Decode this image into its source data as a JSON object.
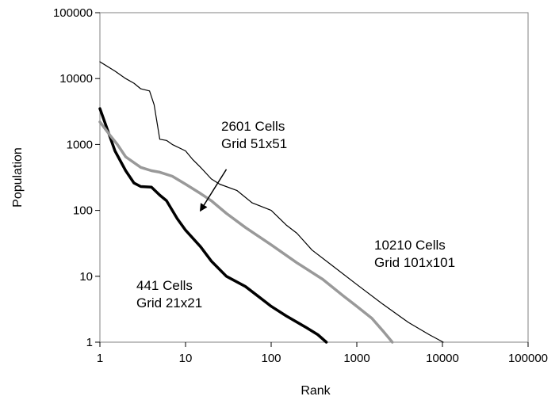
{
  "chart_data": {
    "type": "line",
    "xlabel": "Rank",
    "ylabel": "Population",
    "xscale": "log",
    "yscale": "log",
    "xlim": [
      1,
      100000
    ],
    "ylim": [
      1,
      100000
    ],
    "x_ticks": [
      "1",
      "10",
      "100",
      "1000",
      "10000",
      "100000"
    ],
    "y_ticks": [
      "1",
      "10",
      "100",
      "1000",
      "10000",
      "100000"
    ],
    "grid": false,
    "series": [
      {
        "id": "grid21",
        "color": "#000000",
        "style": "thick",
        "points": [
          [
            1,
            3500
          ],
          [
            1.2,
            1800
          ],
          [
            1.5,
            800
          ],
          [
            2,
            400
          ],
          [
            2.5,
            260
          ],
          [
            3,
            230
          ],
          [
            4,
            225
          ],
          [
            5,
            170
          ],
          [
            6,
            140
          ],
          [
            8,
            75
          ],
          [
            10,
            50
          ],
          [
            15,
            28
          ],
          [
            20,
            17
          ],
          [
            30,
            10
          ],
          [
            50,
            7
          ],
          [
            70,
            5
          ],
          [
            100,
            3.5
          ],
          [
            150,
            2.5
          ],
          [
            250,
            1.7
          ],
          [
            350,
            1.3
          ],
          [
            441,
            1
          ]
        ]
      },
      {
        "id": "grid51",
        "color": "#999999",
        "style": "thick",
        "points": [
          [
            1,
            2200
          ],
          [
            1.3,
            1400
          ],
          [
            1.6,
            1000
          ],
          [
            2,
            650
          ],
          [
            3,
            450
          ],
          [
            4,
            400
          ],
          [
            5,
            380
          ],
          [
            7,
            330
          ],
          [
            10,
            250
          ],
          [
            15,
            180
          ],
          [
            20,
            140
          ],
          [
            30,
            90
          ],
          [
            50,
            55
          ],
          [
            100,
            30
          ],
          [
            200,
            16
          ],
          [
            400,
            9
          ],
          [
            700,
            5
          ],
          [
            1000,
            3.5
          ],
          [
            1500,
            2.3
          ],
          [
            2000,
            1.5
          ],
          [
            2601,
            1
          ]
        ]
      },
      {
        "id": "grid101",
        "color": "#000000",
        "style": "thin",
        "points": [
          [
            1,
            18000
          ],
          [
            1.5,
            13000
          ],
          [
            2,
            10000
          ],
          [
            2.5,
            8500
          ],
          [
            3,
            7000
          ],
          [
            3.8,
            6500
          ],
          [
            4.3,
            4000
          ],
          [
            5,
            1200
          ],
          [
            6,
            1150
          ],
          [
            7,
            1000
          ],
          [
            10,
            800
          ],
          [
            12,
            600
          ],
          [
            15,
            450
          ],
          [
            20,
            300
          ],
          [
            25,
            250
          ],
          [
            40,
            200
          ],
          [
            60,
            130
          ],
          [
            100,
            100
          ],
          [
            150,
            60
          ],
          [
            200,
            45
          ],
          [
            300,
            25
          ],
          [
            500,
            15
          ],
          [
            1000,
            7.5
          ],
          [
            2000,
            3.8
          ],
          [
            4000,
            2
          ],
          [
            7000,
            1.3
          ],
          [
            10210,
            1
          ]
        ]
      }
    ],
    "annotations": {
      "grid51": [
        "2601 Cells",
        "Grid 51x51"
      ],
      "grid101": [
        "10210 Cells",
        "Grid 101x101"
      ],
      "grid21": [
        "441 Cells",
        "Grid 21x21"
      ]
    },
    "annotation_arrow": {
      "from": [
        30,
        420
      ],
      "to": [
        15,
        100
      ]
    }
  }
}
